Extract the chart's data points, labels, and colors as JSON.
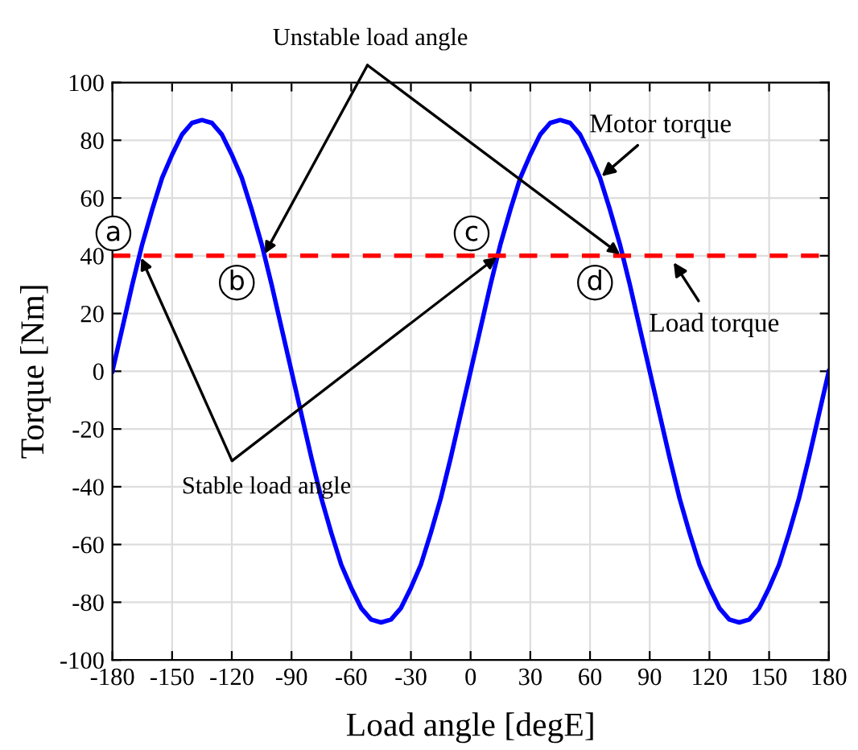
{
  "chart_data": {
    "type": "line",
    "xlabel": "Load angle [degE]",
    "ylabel": "Torque [Nm]",
    "x": [
      -180,
      -175,
      -170,
      -165,
      -160,
      -155,
      -150,
      -145,
      -140,
      -135,
      -130,
      -125,
      -120,
      -115,
      -110,
      -105,
      -100,
      -95,
      -90,
      -85,
      -80,
      -75,
      -70,
      -65,
      -60,
      -55,
      -50,
      -45,
      -40,
      -35,
      -30,
      -25,
      -20,
      -15,
      -10,
      -5,
      0,
      5,
      10,
      15,
      20,
      25,
      30,
      35,
      40,
      45,
      50,
      55,
      60,
      65,
      70,
      75,
      80,
      85,
      90,
      95,
      100,
      105,
      110,
      115,
      120,
      125,
      130,
      135,
      140,
      145,
      150,
      155,
      160,
      165,
      170,
      175,
      180
    ],
    "series": [
      {
        "name": "Motor torque",
        "color": "#0000ff",
        "values": [
          0,
          15,
          30,
          44,
          56,
          67,
          75,
          82,
          86,
          87,
          86,
          82,
          75,
          67,
          56,
          44,
          30,
          15,
          0,
          -15,
          -30,
          -44,
          -56,
          -67,
          -75,
          -82,
          -86,
          -87,
          -86,
          -82,
          -75,
          -67,
          -56,
          -44,
          -30,
          -15,
          0,
          15,
          30,
          44,
          56,
          67,
          75,
          82,
          86,
          87,
          86,
          82,
          75,
          67,
          56,
          44,
          30,
          15,
          0,
          -15,
          -30,
          -44,
          -56,
          -67,
          -75,
          -82,
          -86,
          -87,
          -86,
          -82,
          -75,
          -67,
          -56,
          -44,
          -30,
          -15,
          0
        ]
      }
    ],
    "ref_lines": [
      {
        "axis": "y",
        "value": 40,
        "label": "Load torque",
        "color": "#ff0000",
        "line_style": "dashed"
      }
    ],
    "annotations": [
      {
        "text": "a",
        "x": -166,
        "y": 40
      },
      {
        "text": "b",
        "x": -104,
        "y": 40
      },
      {
        "text": "c",
        "x": 14,
        "y": 40
      },
      {
        "text": "d",
        "x": 76,
        "y": 40
      },
      {
        "text": "Unstable load angle",
        "x": -104,
        "y": 40
      },
      {
        "text": "Stable load angle",
        "x": -166,
        "y": 40
      }
    ],
    "xlim": [
      -180,
      180
    ],
    "ylim": [
      -100,
      100
    ],
    "xticks": [
      -180,
      -150,
      -120,
      -90,
      -60,
      -30,
      0,
      30,
      60,
      90,
      120,
      150,
      180
    ],
    "yticks": [
      -100,
      -80,
      -60,
      -40,
      -20,
      0,
      20,
      40,
      60,
      80,
      100
    ],
    "grid": true,
    "line_style": "solid",
    "marker": "none"
  }
}
